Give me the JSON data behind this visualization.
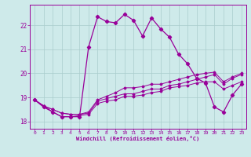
{
  "xlabel": "Windchill (Refroidissement éolien,°C)",
  "bg_color": "#ceeaea",
  "line_color": "#990099",
  "grid_color": "#aacccc",
  "xlim": [
    -0.5,
    23.5
  ],
  "ylim": [
    17.7,
    22.85
  ],
  "yticks": [
    18,
    19,
    20,
    21,
    22
  ],
  "xticks": [
    0,
    1,
    2,
    3,
    4,
    5,
    6,
    7,
    8,
    9,
    10,
    11,
    12,
    13,
    14,
    15,
    16,
    17,
    18,
    19,
    20,
    21,
    22,
    23
  ],
  "series": [
    [
      18.9,
      18.65,
      18.4,
      18.2,
      18.2,
      18.25,
      18.3,
      18.75,
      18.85,
      18.9,
      19.05,
      19.05,
      19.1,
      19.2,
      19.25,
      19.4,
      19.45,
      19.5,
      19.6,
      19.65,
      19.65,
      19.35,
      19.5,
      19.65
    ],
    [
      18.9,
      18.65,
      18.5,
      18.35,
      18.3,
      18.3,
      18.35,
      18.85,
      18.95,
      19.05,
      19.15,
      19.15,
      19.25,
      19.35,
      19.35,
      19.5,
      19.55,
      19.65,
      19.75,
      19.85,
      19.95,
      19.55,
      19.8,
      19.95
    ],
    [
      18.9,
      18.65,
      18.5,
      18.35,
      18.3,
      18.3,
      18.4,
      18.9,
      19.05,
      19.2,
      19.4,
      19.4,
      19.45,
      19.55,
      19.55,
      19.65,
      19.75,
      19.85,
      19.95,
      20.0,
      20.05,
      19.65,
      19.85,
      20.0
    ],
    [
      18.9,
      18.6,
      18.4,
      18.2,
      18.2,
      18.2,
      21.1,
      22.35,
      22.15,
      22.1,
      22.45,
      22.2,
      21.55,
      22.3,
      21.85,
      21.5,
      20.8,
      20.4,
      19.8,
      19.6,
      18.6,
      18.4,
      19.1,
      19.55
    ]
  ]
}
